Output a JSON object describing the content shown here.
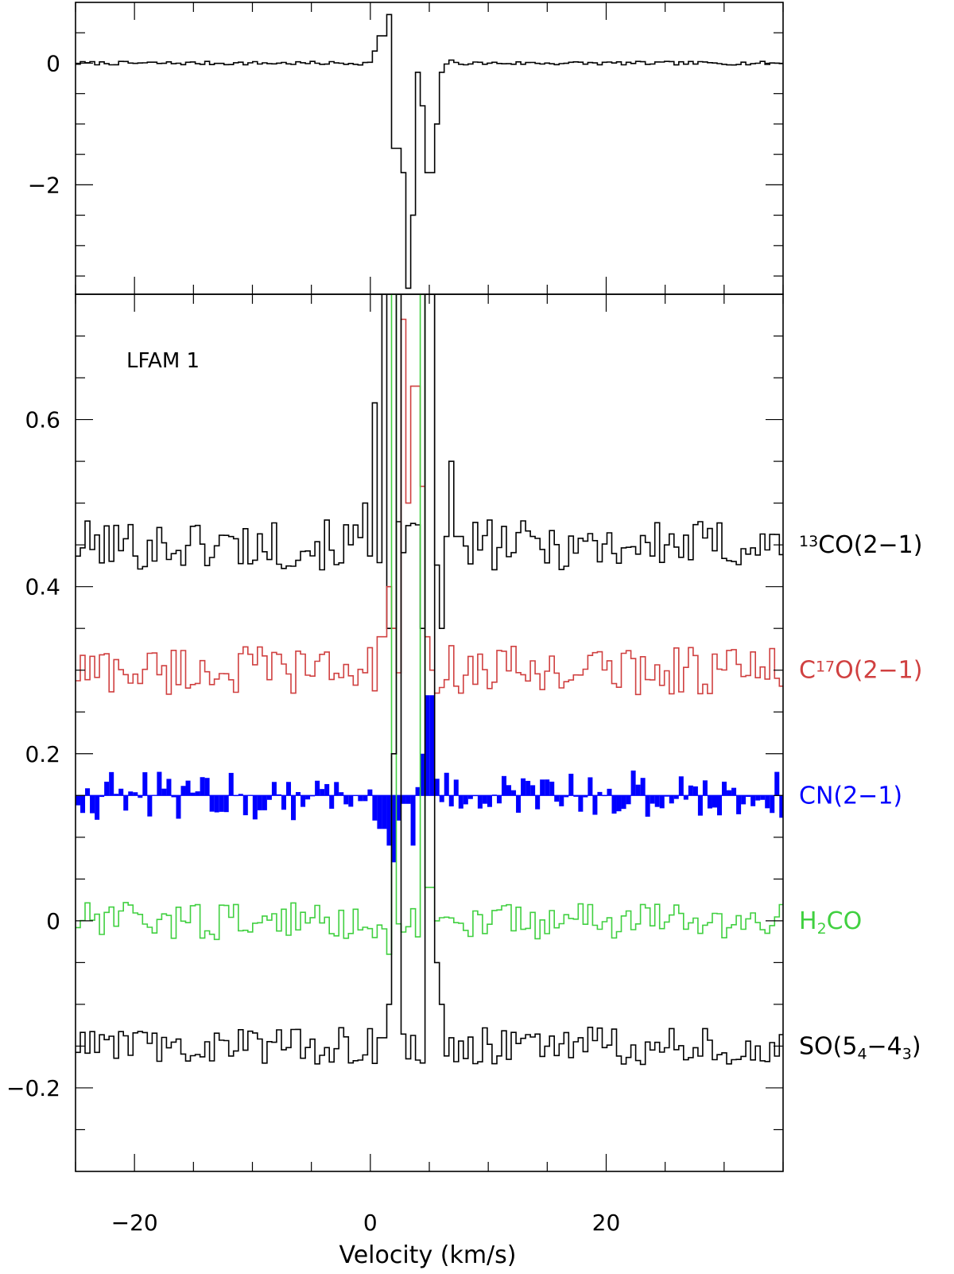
{
  "chart_data": [
    {
      "panel": "top",
      "type": "line",
      "style": "step",
      "xlim": [
        -25,
        35
      ],
      "ylim": [
        -3.8,
        1.0
      ],
      "yticks": [
        {
          "value": -2,
          "label": "−2"
        },
        {
          "value": 0,
          "label": "0"
        }
      ],
      "color": "#000000",
      "baseline_noise": 0.02,
      "features": [
        {
          "x": 0.4,
          "y": 0.2
        },
        {
          "x": 1.0,
          "y": 0.45
        },
        {
          "x": 1.6,
          "y": 0.8
        },
        {
          "x": 2.2,
          "y": -1.4
        },
        {
          "x": 2.8,
          "y": -1.8
        },
        {
          "x": 3.2,
          "y": -3.7
        },
        {
          "x": 3.6,
          "y": -2.5
        },
        {
          "x": 4.0,
          "y": -0.15
        },
        {
          "x": 4.5,
          "y": -0.7
        },
        {
          "x": 5.0,
          "y": -1.8
        },
        {
          "x": 5.5,
          "y": -1.0
        },
        {
          "x": 6.0,
          "y": -0.15
        },
        {
          "x": 6.8,
          "y": 0.05
        }
      ]
    },
    {
      "panel": "bottom",
      "type": "line",
      "style": "step",
      "title_label": "LFAM 1",
      "xlabel": "Velocity (km/s)",
      "xlim": [
        -25,
        35
      ],
      "ylim": [
        -0.3,
        0.75
      ],
      "xticks": [
        {
          "value": -20,
          "label": "−20"
        },
        {
          "value": 0,
          "label": "0"
        },
        {
          "value": 20,
          "label": "20"
        }
      ],
      "yticks": [
        {
          "value": -0.2,
          "label": "−0.2"
        },
        {
          "value": 0,
          "label": "0"
        },
        {
          "value": 0.2,
          "label": "0.2"
        },
        {
          "value": 0.4,
          "label": "0.4"
        },
        {
          "value": 0.6,
          "label": "0.6"
        }
      ],
      "series": [
        {
          "name": "13CO(2-1)",
          "label_parts": [
            {
              "t": "13",
              "s": "sup"
            },
            {
              "t": "CO(2−1)"
            }
          ],
          "color": "#000000",
          "baseline": 0.45,
          "noise": 0.02,
          "features": [
            {
              "x": -0.5,
              "y": 0.5
            },
            {
              "x": 0.5,
              "y": 0.62
            },
            {
              "x": 1.2,
              "y": 0.85
            },
            {
              "x": 1.8,
              "y": 0.35
            },
            {
              "x": 4.5,
              "y": 0.35
            },
            {
              "x": 5.0,
              "y": 0.9
            },
            {
              "x": 6.0,
              "y": 0.35
            },
            {
              "x": 7.0,
              "y": 0.55
            },
            {
              "x": 7.5,
              "y": 0.46
            }
          ]
        },
        {
          "name": "C17O(2-1)",
          "label_parts": [
            {
              "t": "C"
            },
            {
              "t": "17",
              "s": "sup"
            },
            {
              "t": "O(2−1)"
            }
          ],
          "color": "#d04040",
          "baseline": 0.3,
          "noise": 0.02,
          "features": [
            {
              "x": 1.0,
              "y": 0.34
            },
            {
              "x": 1.5,
              "y": 0.4
            },
            {
              "x": 2.0,
              "y": 0.35
            },
            {
              "x": 2.8,
              "y": 0.72
            },
            {
              "x": 3.2,
              "y": 0.5
            },
            {
              "x": 3.8,
              "y": 0.64
            },
            {
              "x": 4.3,
              "y": 0.52
            },
            {
              "x": 4.8,
              "y": 0.34
            },
            {
              "x": 5.3,
              "y": 0.3
            }
          ]
        },
        {
          "name": "CN(2-1)",
          "label_parts": [
            {
              "t": "CN(2−1)"
            }
          ],
          "color": "#0000ff",
          "filled": true,
          "baseline": 0.15,
          "noise": 0.02,
          "features": [
            {
              "x": 0.5,
              "y": 0.12
            },
            {
              "x": 1.0,
              "y": 0.11
            },
            {
              "x": 1.5,
              "y": 0.09
            },
            {
              "x": 2.0,
              "y": 0.07
            },
            {
              "x": 2.5,
              "y": 0.12
            },
            {
              "x": 3.0,
              "y": 0.14
            },
            {
              "x": 3.5,
              "y": 0.09
            },
            {
              "x": 4.0,
              "y": 0.16
            },
            {
              "x": 4.5,
              "y": 0.2
            },
            {
              "x": 5.0,
              "y": 0.27
            },
            {
              "x": 5.5,
              "y": 0.17
            }
          ]
        },
        {
          "name": "H2CO",
          "label_parts": [
            {
              "t": "H"
            },
            {
              "t": "2",
              "s": "sub"
            },
            {
              "t": "CO"
            }
          ],
          "color": "#40d040",
          "baseline": 0.0,
          "noise": 0.015,
          "features": [
            {
              "x": 1.5,
              "y": -0.04
            },
            {
              "x": 2.0,
              "y": 0.75
            },
            {
              "x": 4.5,
              "y": 0.75
            },
            {
              "x": 5.0,
              "y": 0.04
            },
            {
              "x": 5.5,
              "y": 0.0
            }
          ]
        },
        {
          "name": "SO(54-43)",
          "label_parts": [
            {
              "t": "SO(5"
            },
            {
              "t": "4",
              "s": "sub"
            },
            {
              "t": "−4"
            },
            {
              "t": "3",
              "s": "sub"
            },
            {
              "t": ")"
            }
          ],
          "color": "#000000",
          "baseline": -0.15,
          "noise": 0.015,
          "features": [
            {
              "x": 1.0,
              "y": -0.14
            },
            {
              "x": 1.5,
              "y": -0.1
            },
            {
              "x": 2.0,
              "y": 0.2
            },
            {
              "x": 2.5,
              "y": 0.75
            },
            {
              "x": 5.0,
              "y": 0.75
            },
            {
              "x": 5.5,
              "y": -0.05
            },
            {
              "x": 6.2,
              "y": -0.1
            },
            {
              "x": 7.0,
              "y": -0.14
            }
          ]
        }
      ]
    }
  ]
}
